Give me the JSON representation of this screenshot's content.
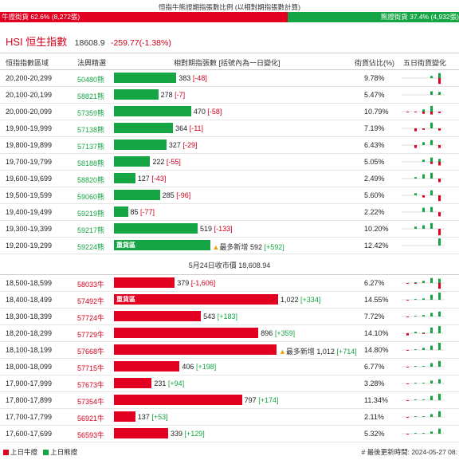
{
  "title": "恒指牛熊證期指張數比例 (以相對期指張數計算)",
  "ratio": {
    "bull_text": "牛證街貨 62.6% (8,272張)",
    "bull_pct": 62.6,
    "bear_text": "熊證街貨 37.4% (4,932張)",
    "bear_pct": 37.4
  },
  "index": {
    "name": "HSI 恒生指數",
    "price": "18608.9",
    "change": "-259.77(-1.38%)"
  },
  "headers": {
    "range": "恒指指數區域",
    "code": "法興精選",
    "contracts": "相對期指張數 [括號內為一日變化]",
    "pct": "街貨佔比(%)",
    "five": "五日街貨變化"
  },
  "close_text": "5月24日收市價 18,608.94",
  "bear_rows": [
    {
      "range": "20,200-20,299",
      "code": "50480熊",
      "value": "383",
      "change": "[-48]",
      "sign": "neg",
      "pct": "9.78%",
      "bar_frac": 0.38,
      "spark": [
        [
          0,
          0
        ],
        [
          0,
          0
        ],
        [
          0,
          0
        ],
        [
          0.3,
          0
        ],
        [
          0.7,
          -0.8
        ]
      ]
    },
    {
      "range": "20,100-20,199",
      "code": "58821熊",
      "value": "278",
      "change": "[-7]",
      "sign": "neg",
      "pct": "5.47%",
      "bar_frac": 0.27,
      "spark": [
        [
          0,
          0
        ],
        [
          0,
          0
        ],
        [
          0,
          0
        ],
        [
          0.5,
          0
        ],
        [
          0.4,
          0
        ]
      ]
    },
    {
      "range": "20,000-20,099",
      "code": "57359熊",
      "value": "470",
      "change": "[-58]",
      "sign": "neg",
      "pct": "10.79%",
      "bar_frac": 0.47,
      "spark": [
        [
          0,
          -0.1
        ],
        [
          0,
          -0.1
        ],
        [
          0.3,
          -0.3
        ],
        [
          0.8,
          -0.4
        ],
        [
          0,
          -0.2
        ]
      ]
    },
    {
      "range": "19,900-19,999",
      "code": "57138熊",
      "value": "364",
      "change": "[-11]",
      "sign": "neg",
      "pct": "7.19%",
      "bar_frac": 0.36,
      "spark": [
        [
          0,
          0
        ],
        [
          0,
          -0.4
        ],
        [
          0,
          -0.2
        ],
        [
          0.8,
          0
        ],
        [
          0,
          -0.3
        ]
      ]
    },
    {
      "range": "19,800-19,899",
      "code": "57137熊",
      "value": "327",
      "change": "[-29]",
      "sign": "neg",
      "pct": "6.43%",
      "bar_frac": 0.32,
      "spark": [
        [
          0,
          0
        ],
        [
          0,
          -0.4
        ],
        [
          0.4,
          0
        ],
        [
          0.7,
          0
        ],
        [
          0,
          -0.4
        ]
      ]
    },
    {
      "range": "19,700-19,799",
      "code": "58188熊",
      "value": "222",
      "change": "[-55]",
      "sign": "neg",
      "pct": "5.05%",
      "bar_frac": 0.22,
      "spark": [
        [
          0,
          0
        ],
        [
          0,
          0
        ],
        [
          0.3,
          0
        ],
        [
          0.6,
          -0.3
        ],
        [
          0.4,
          -0.5
        ]
      ]
    },
    {
      "range": "19,600-19,699",
      "code": "58820熊",
      "value": "127",
      "change": "[-43]",
      "sign": "neg",
      "pct": "2.49%",
      "bar_frac": 0.13,
      "spark": [
        [
          0,
          0
        ],
        [
          0.2,
          0
        ],
        [
          0.6,
          0
        ],
        [
          0.8,
          0
        ],
        [
          0,
          -0.5
        ]
      ]
    },
    {
      "range": "19,500-19,599",
      "code": "59060熊",
      "value": "285",
      "change": "[-96]",
      "sign": "neg",
      "pct": "5.60%",
      "bar_frac": 0.28,
      "spark": [
        [
          0,
          0
        ],
        [
          0.3,
          0
        ],
        [
          0,
          -0.3
        ],
        [
          0.7,
          0
        ],
        [
          0,
          -0.8
        ]
      ]
    },
    {
      "range": "19,400-19,499",
      "code": "59219熊",
      "value": "85",
      "change": "[-77]",
      "sign": "neg",
      "pct": "2.22%",
      "bar_frac": 0.085,
      "spark": [
        [
          0,
          0
        ],
        [
          0,
          0
        ],
        [
          0.6,
          0
        ],
        [
          0.7,
          0
        ],
        [
          0,
          -0.6
        ]
      ]
    },
    {
      "range": "19,300-19,399",
      "code": "59217熊",
      "value": "519",
      "change": "[-133]",
      "sign": "neg",
      "pct": "10.20%",
      "bar_frac": 0.51,
      "spark": [
        [
          0,
          0
        ],
        [
          0.3,
          0
        ],
        [
          0.5,
          0
        ],
        [
          0.8,
          0
        ],
        [
          0,
          -0.9
        ]
      ]
    },
    {
      "range": "19,200-19,299",
      "code": "59224熊",
      "value": "592",
      "change": "[+592]",
      "sign": "pos",
      "pct": "12.42%",
      "bar_frac": 0.585,
      "heavy": "重貨區",
      "newmax": "最多新增",
      "spark": [
        [
          0,
          0
        ],
        [
          0,
          0
        ],
        [
          0,
          0
        ],
        [
          0,
          0
        ],
        [
          1,
          0
        ]
      ]
    }
  ],
  "bull_rows": [
    {
      "range": "18,500-18,599",
      "code": "58033牛",
      "value": "379",
      "change": "[-1,606]",
      "sign": "neg",
      "pct": "6.27%",
      "bar_frac": 0.37,
      "spark": [
        [
          0,
          -0.1
        ],
        [
          0.1,
          -0.1
        ],
        [
          0.3,
          0
        ],
        [
          0.7,
          0
        ],
        [
          0.6,
          -0.8
        ]
      ]
    },
    {
      "range": "18,400-18,499",
      "code": "57492牛",
      "value": "1,022",
      "change": "[+334]",
      "sign": "pos",
      "pct": "14.55%",
      "bar_frac": 1.0,
      "heavy": "重貨區",
      "spark": [
        [
          0,
          -0.1
        ],
        [
          0.1,
          0
        ],
        [
          0.2,
          0
        ],
        [
          0.7,
          0
        ],
        [
          1,
          0
        ]
      ]
    },
    {
      "range": "18,300-18,399",
      "code": "57724牛",
      "value": "543",
      "change": "[+183]",
      "sign": "pos",
      "pct": "7.72%",
      "bar_frac": 0.53,
      "spark": [
        [
          0,
          -0.1
        ],
        [
          0.1,
          0
        ],
        [
          0.2,
          0
        ],
        [
          0.5,
          0
        ],
        [
          0.7,
          0
        ]
      ]
    },
    {
      "range": "18,200-18,299",
      "code": "57729牛",
      "value": "896",
      "change": "[+359]",
      "sign": "pos",
      "pct": "14.10%",
      "bar_frac": 0.88,
      "spark": [
        [
          0,
          -0.3
        ],
        [
          0.2,
          0
        ],
        [
          0.1,
          -0.1
        ],
        [
          0.8,
          0
        ],
        [
          1,
          0
        ]
      ]
    },
    {
      "range": "18,100-18,199",
      "code": "57668牛",
      "value": "1,012",
      "change": "[+714]",
      "sign": "pos",
      "pct": "14.80%",
      "bar_frac": 0.99,
      "newmax": "最多新增",
      "spark": [
        [
          0,
          -0.1
        ],
        [
          0.1,
          0
        ],
        [
          0.3,
          0
        ],
        [
          0.6,
          0
        ],
        [
          1,
          0
        ]
      ]
    },
    {
      "range": "18,000-18,099",
      "code": "57715牛",
      "value": "406",
      "change": "[+198]",
      "sign": "pos",
      "pct": "6.77%",
      "bar_frac": 0.4,
      "spark": [
        [
          0,
          -0.1
        ],
        [
          0.1,
          0
        ],
        [
          0.1,
          0
        ],
        [
          0.5,
          0
        ],
        [
          0.8,
          0
        ]
      ]
    },
    {
      "range": "17,900-17,999",
      "code": "57673牛",
      "value": "231",
      "change": "[+94]",
      "sign": "pos",
      "pct": "3.28%",
      "bar_frac": 0.23,
      "spark": [
        [
          0,
          -0.1
        ],
        [
          0.1,
          0
        ],
        [
          0.1,
          0
        ],
        [
          0.4,
          0
        ],
        [
          0.6,
          0
        ]
      ]
    },
    {
      "range": "17,800-17,899",
      "code": "57354牛",
      "value": "797",
      "change": "[+174]",
      "sign": "pos",
      "pct": "11.34%",
      "bar_frac": 0.78,
      "spark": [
        [
          0,
          -0.1
        ],
        [
          0.1,
          0
        ],
        [
          0.1,
          0
        ],
        [
          0.6,
          0
        ],
        [
          0.9,
          0
        ]
      ]
    },
    {
      "range": "17,700-17,799",
      "code": "56921牛",
      "value": "137",
      "change": "[+53]",
      "sign": "pos",
      "pct": "2.11%",
      "bar_frac": 0.13,
      "spark": [
        [
          0,
          -0.1
        ],
        [
          0.1,
          0
        ],
        [
          0.1,
          0
        ],
        [
          0.4,
          0
        ],
        [
          0.8,
          0
        ]
      ]
    },
    {
      "range": "17,600-17,699",
      "code": "56593牛",
      "value": "339",
      "change": "[+129]",
      "sign": "pos",
      "pct": "5.32%",
      "bar_frac": 0.33,
      "spark": [
        [
          0,
          -0.1
        ],
        [
          0.1,
          0
        ],
        [
          0.1,
          0
        ],
        [
          0.3,
          0
        ],
        [
          0.7,
          0
        ]
      ]
    }
  ],
  "legend": {
    "bull": "上日牛證",
    "bear": "上日熊證",
    "bull_color": "#e1001f",
    "bear_color": "#16a544"
  },
  "updated": "# 最後更新時間: 2024-05-27 08:"
}
